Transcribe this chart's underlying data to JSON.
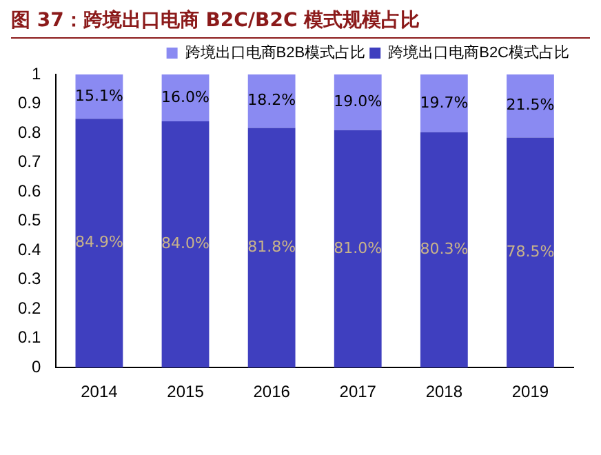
{
  "chart_data": {
    "type": "bar",
    "title": "图 37：跨境出口电商 B2C/B2C 模式规模占比",
    "stacked": true,
    "categories": [
      "2014",
      "2015",
      "2016",
      "2017",
      "2018",
      "2019"
    ],
    "series": [
      {
        "name": "跨境出口电商B2C模式占比",
        "color": "#3f3fbf",
        "values": [
          0.849,
          0.84,
          0.818,
          0.81,
          0.803,
          0.785
        ],
        "value_labels": [
          "84.9%",
          "84.0%",
          "81.8%",
          "81.0%",
          "80.3%",
          "78.5%"
        ]
      },
      {
        "name": "跨境出口电商B2B模式占比",
        "color": "#8a8af2",
        "values": [
          0.151,
          0.16,
          0.182,
          0.19,
          0.197,
          0.215
        ],
        "value_labels": [
          "15.1%",
          "16.0%",
          "18.2%",
          "19.0%",
          "19.7%",
          "21.5%"
        ]
      }
    ],
    "ylim": [
      0,
      1
    ],
    "yticks": [
      0,
      0.1,
      0.2,
      0.3,
      0.4,
      0.5,
      0.6,
      0.7,
      0.8,
      0.9,
      1
    ],
    "legend": "top right",
    "grid": false
  }
}
